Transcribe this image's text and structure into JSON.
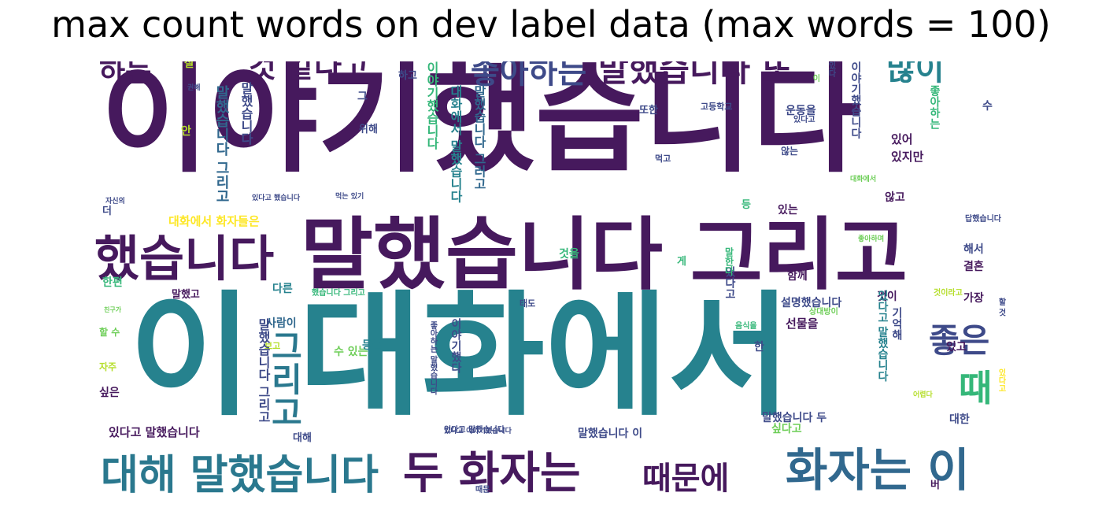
{
  "title": "max count words on dev label data (max words = 100)",
  "palette": {
    "purple": "#46195d",
    "violet": "#482878",
    "indigo": "#3e4a89",
    "blue": "#31688e",
    "teal": "#26828e",
    "green": "#35b779",
    "lime": "#6ece58",
    "yellow": "#b5de2b",
    "gold": "#fde725"
  },
  "words": [
    {
      "text": "이야기했습니다",
      "color": "#46195d"
    },
    {
      "text": "이 대화에서",
      "color": "#26828e"
    },
    {
      "text": "말했습니다 그리고",
      "color": "#46195d"
    },
    {
      "text": "했습니다",
      "color": "#46195d"
    },
    {
      "text": "대해 말했습니다",
      "color": "#2a788e"
    },
    {
      "text": "두 화자는",
      "color": "#46195d"
    },
    {
      "text": "화자는 이",
      "color": "#31688e"
    },
    {
      "text": "때문에",
      "color": "#46195d"
    },
    {
      "text": "말했습니다 또",
      "color": "#46195d"
    },
    {
      "text": "좋아하는",
      "color": "#3e4a89"
    },
    {
      "text": "것 같다고",
      "color": "#46195d"
    },
    {
      "text": "하는",
      "color": "#46195d"
    },
    {
      "text": "많이",
      "color": "#26828e"
    },
    {
      "text": "그리고",
      "color": "#2a788e"
    },
    {
      "text": "좋은",
      "color": "#3e4a89"
    },
    {
      "text": "때",
      "color": "#35b779"
    },
    {
      "text": "대화에서 화자들은",
      "color": "#fde725"
    },
    {
      "text": "있다고 말했습니다",
      "color": "#46195d"
    },
    {
      "text": "말했습니다 이",
      "color": "#3e4a89"
    },
    {
      "text": "말했습니다 두",
      "color": "#3e4a89"
    },
    {
      "text": "설명했습니다",
      "color": "#3e4a89"
    },
    {
      "text": "수 있는",
      "color": "#6ece58"
    },
    {
      "text": "선물을",
      "color": "#46195d"
    },
    {
      "text": "운동을",
      "color": "#3e4a89"
    },
    {
      "text": "있지만",
      "color": "#46195d"
    },
    {
      "text": "있어",
      "color": "#46195d"
    },
    {
      "text": "결혼",
      "color": "#46195d"
    },
    {
      "text": "해서",
      "color": "#3e4a89"
    },
    {
      "text": "가장",
      "color": "#46195d"
    },
    {
      "text": "것이",
      "color": "#46195d"
    },
    {
      "text": "함께",
      "color": "#46195d"
    },
    {
      "text": "있고",
      "color": "#46195d"
    },
    {
      "text": "싶다고",
      "color": "#6ece58"
    },
    {
      "text": "대한",
      "color": "#3e4a89"
    },
    {
      "text": "하고",
      "color": "#3e4a89"
    },
    {
      "text": "또한",
      "color": "#3e4a89"
    },
    {
      "text": "위해",
      "color": "#3e4a89"
    },
    {
      "text": "있는",
      "color": "#46195d"
    },
    {
      "text": "않고",
      "color": "#46195d"
    },
    {
      "text": "않는",
      "color": "#3e4a89"
    },
    {
      "text": "것을",
      "color": "#35b779"
    },
    {
      "text": "다른",
      "color": "#26828e"
    },
    {
      "text": "사람이",
      "color": "#31688e"
    },
    {
      "text": "등을",
      "color": "#26828e"
    },
    {
      "text": "한편",
      "color": "#35b779"
    },
    {
      "text": "말했고",
      "color": "#46195d"
    },
    {
      "text": "싶은",
      "color": "#46195d"
    },
    {
      "text": "대해",
      "color": "#3e4a89"
    },
    {
      "text": "더",
      "color": "#3e4a89"
    },
    {
      "text": "안",
      "color": "#b5de2b"
    },
    {
      "text": "그",
      "color": "#3e4a89"
    },
    {
      "text": "수",
      "color": "#3e4a89"
    },
    {
      "text": "한",
      "color": "#3e4a89"
    },
    {
      "text": "등",
      "color": "#35b779"
    },
    {
      "text": "게",
      "color": "#35b779"
    },
    {
      "text": "버",
      "color": "#46195d"
    },
    {
      "text": "잘",
      "color": "#b5de2b"
    },
    {
      "text": "자주",
      "color": "#b5de2b"
    },
    {
      "text": "할 수",
      "color": "#6ece58"
    },
    {
      "text": "먹고",
      "color": "#3e4a89"
    },
    {
      "text": "보고",
      "color": "#b5de2b"
    },
    {
      "text": "태도",
      "color": "#3e4a89"
    },
    {
      "text": "고등학교",
      "color": "#3e4a89"
    },
    {
      "text": "있다고",
      "color": "#3e4a89"
    },
    {
      "text": "적이",
      "color": "#b5de2b"
    },
    {
      "text": "자신의",
      "color": "#3e4a89"
    },
    {
      "text": "답했습니다",
      "color": "#3e4a89"
    },
    {
      "text": "상대방이",
      "color": "#6ece58"
    },
    {
      "text": "음식을",
      "color": "#35b779"
    },
    {
      "text": "어렵다",
      "color": "#b5de2b"
    },
    {
      "text": "있다고 말했습니다",
      "color": "#3e4a89"
    },
    {
      "text": "있다고 이야기했습니다",
      "color": "#3e4a89"
    },
    {
      "text": "했습니다 그리고",
      "color": "#35b779"
    },
    {
      "text": "있다고 했습니다",
      "color": "#3e4a89"
    },
    {
      "text": "대화에서",
      "color": "#6ece58"
    },
    {
      "text": "좋아하며",
      "color": "#6ece58"
    },
    {
      "text": "권해",
      "color": "#3e4a89"
    },
    {
      "text": "친구가",
      "color": "#6ece58"
    },
    {
      "text": "말했습니다 그리고",
      "color": "#31688e"
    },
    {
      "text": "말했습니다",
      "color": "#3e4a89"
    },
    {
      "text": "이야기했습니다",
      "color": "#35b779"
    },
    {
      "text": "대화에서 말했습니다",
      "color": "#26828e"
    },
    {
      "text": "말했습니다 그러고",
      "color": "#31688e"
    },
    {
      "text": "이야기했습니다",
      "color": "#3e4a89"
    },
    {
      "text": "있다고 말했습니다",
      "color": "#26828e"
    },
    {
      "text": "말했습니다 그리고",
      "color": "#3e4a89"
    },
    {
      "text": "좋아하는",
      "color": "#35b779"
    },
    {
      "text": "이야기했다",
      "color": "#3e4a89"
    },
    {
      "text": "있다고",
      "color": "#3e4a89"
    },
    {
      "text": "기억해",
      "color": "#3e4a89"
    },
    {
      "text": "말한다",
      "color": "#35b779"
    },
    {
      "text": "것이라고",
      "color": "#b5de2b"
    },
    {
      "text": "있다고",
      "color": "#fde725"
    },
    {
      "text": "할 것",
      "color": "#3e4a89"
    },
    {
      "text": "좋아하는 말했습니다",
      "color": "#3e4a89"
    },
    {
      "text": "이",
      "color": "#6ece58"
    },
    {
      "text": "있다",
      "color": "#3e4a89"
    },
    {
      "text": "어렵다고",
      "color": "#b5de2b"
    },
    {
      "text": "먹는 있기",
      "color": "#3e4a89"
    },
    {
      "text": "때문",
      "color": "#3e4a89"
    }
  ]
}
